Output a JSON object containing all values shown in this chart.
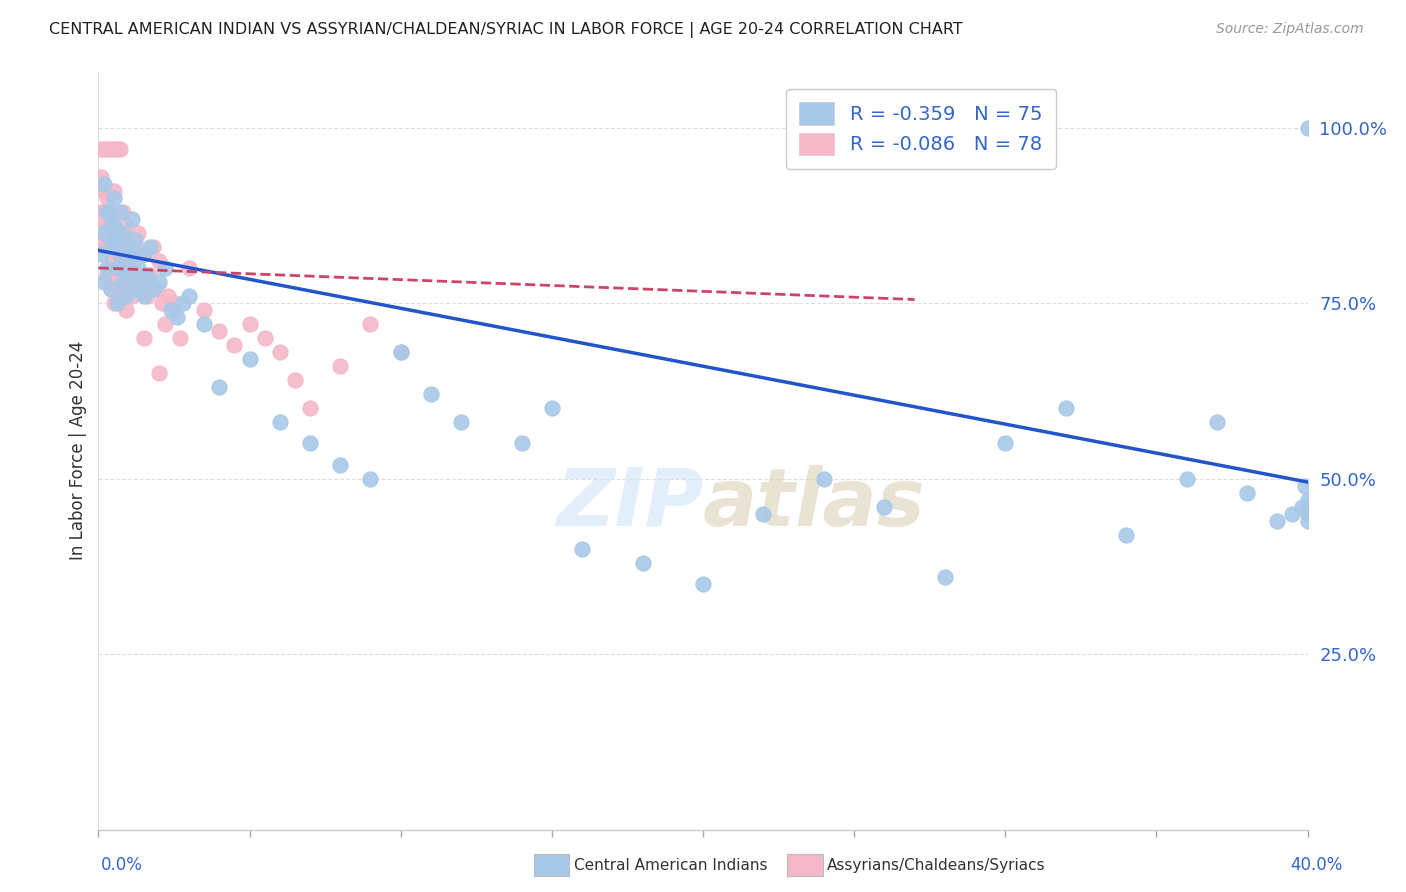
{
  "title": "CENTRAL AMERICAN INDIAN VS ASSYRIAN/CHALDEAN/SYRIAC IN LABOR FORCE | AGE 20-24 CORRELATION CHART",
  "source": "Source: ZipAtlas.com",
  "ylabel": "In Labor Force | Age 20-24",
  "yticks": [
    0.0,
    0.25,
    0.5,
    0.75,
    1.0
  ],
  "ytick_labels": [
    "",
    "25.0%",
    "50.0%",
    "75.0%",
    "100.0%"
  ],
  "xlim": [
    0.0,
    0.4
  ],
  "ylim": [
    0.0,
    1.08
  ],
  "blue_R": -0.359,
  "blue_N": 75,
  "pink_R": -0.086,
  "pink_N": 78,
  "blue_color": "#a8c8e8",
  "pink_color": "#f4b8c8",
  "blue_line_color": "#2255cc",
  "pink_line_color": "#cc4466",
  "blue_label": "Central American Indians",
  "pink_label": "Assyrians/Chaldeans/Syriacs",
  "watermark": "ZIPatlas",
  "blue_scatter_x": [
    0.001,
    0.002,
    0.002,
    0.003,
    0.003,
    0.004,
    0.004,
    0.005,
    0.005,
    0.006,
    0.006,
    0.007,
    0.007,
    0.008,
    0.008,
    0.009,
    0.009,
    0.01,
    0.01,
    0.011,
    0.011,
    0.012,
    0.012,
    0.013,
    0.014,
    0.015,
    0.015,
    0.016,
    0.017,
    0.018,
    0.02,
    0.022,
    0.024,
    0.026,
    0.028,
    0.03,
    0.035,
    0.04,
    0.05,
    0.06,
    0.07,
    0.08,
    0.09,
    0.1,
    0.11,
    0.12,
    0.14,
    0.15,
    0.16,
    0.18,
    0.2,
    0.22,
    0.24,
    0.26,
    0.28,
    0.3,
    0.32,
    0.34,
    0.36,
    0.37,
    0.38,
    0.39,
    0.395,
    0.398,
    0.399,
    0.4,
    0.4,
    0.4,
    0.4,
    0.4,
    0.002,
    0.003,
    0.004,
    0.005,
    0.006
  ],
  "blue_scatter_y": [
    0.82,
    0.85,
    0.78,
    0.88,
    0.8,
    0.83,
    0.77,
    0.9,
    0.86,
    0.84,
    0.75,
    0.88,
    0.82,
    0.78,
    0.85,
    0.8,
    0.76,
    0.83,
    0.79,
    0.87,
    0.82,
    0.77,
    0.84,
    0.8,
    0.78,
    0.82,
    0.76,
    0.79,
    0.83,
    0.77,
    0.78,
    0.8,
    0.74,
    0.73,
    0.75,
    0.76,
    0.72,
    0.63,
    0.67,
    0.58,
    0.55,
    0.52,
    0.5,
    0.68,
    0.62,
    0.58,
    0.55,
    0.6,
    0.4,
    0.38,
    0.35,
    0.45,
    0.5,
    0.46,
    0.36,
    0.55,
    0.6,
    0.42,
    0.5,
    0.58,
    0.48,
    0.44,
    0.45,
    0.46,
    0.49,
    1.0,
    0.47,
    0.46,
    0.45,
    0.44,
    0.92,
    0.88,
    0.86,
    0.84,
    0.8
  ],
  "pink_scatter_x": [
    0.001,
    0.001,
    0.001,
    0.002,
    0.002,
    0.002,
    0.003,
    0.003,
    0.003,
    0.003,
    0.004,
    0.004,
    0.004,
    0.004,
    0.005,
    0.005,
    0.005,
    0.005,
    0.006,
    0.006,
    0.006,
    0.007,
    0.007,
    0.007,
    0.008,
    0.008,
    0.008,
    0.009,
    0.009,
    0.01,
    0.01,
    0.011,
    0.011,
    0.012,
    0.012,
    0.013,
    0.014,
    0.015,
    0.016,
    0.017,
    0.018,
    0.019,
    0.02,
    0.021,
    0.022,
    0.023,
    0.025,
    0.027,
    0.03,
    0.035,
    0.04,
    0.045,
    0.05,
    0.055,
    0.06,
    0.065,
    0.07,
    0.08,
    0.09,
    0.1,
    0.001,
    0.001,
    0.002,
    0.002,
    0.003,
    0.003,
    0.004,
    0.004,
    0.005,
    0.005,
    0.006,
    0.007,
    0.008,
    0.009,
    0.01,
    0.015,
    0.02,
    0.025
  ],
  "pink_scatter_y": [
    0.85,
    0.92,
    0.97,
    0.83,
    0.88,
    0.97,
    0.79,
    0.86,
    0.9,
    0.97,
    0.82,
    0.88,
    0.77,
    0.97,
    0.84,
    0.8,
    0.91,
    0.97,
    0.78,
    0.85,
    0.97,
    0.82,
    0.76,
    0.97,
    0.88,
    0.83,
    0.79,
    0.86,
    0.81,
    0.77,
    0.84,
    0.8,
    0.76,
    0.83,
    0.79,
    0.85,
    0.78,
    0.82,
    0.76,
    0.79,
    0.83,
    0.77,
    0.81,
    0.75,
    0.72,
    0.76,
    0.74,
    0.7,
    0.8,
    0.74,
    0.71,
    0.69,
    0.72,
    0.7,
    0.68,
    0.64,
    0.6,
    0.66,
    0.72,
    0.68,
    0.93,
    0.88,
    0.91,
    0.86,
    0.83,
    0.88,
    0.85,
    0.8,
    0.78,
    0.75,
    0.82,
    0.8,
    0.77,
    0.74,
    0.78,
    0.7,
    0.65,
    0.75
  ],
  "blue_trend_x": [
    0.0,
    0.4
  ],
  "blue_trend_y": [
    0.825,
    0.495
  ],
  "pink_trend_x": [
    0.0,
    0.27
  ],
  "pink_trend_y": [
    0.8,
    0.755
  ]
}
